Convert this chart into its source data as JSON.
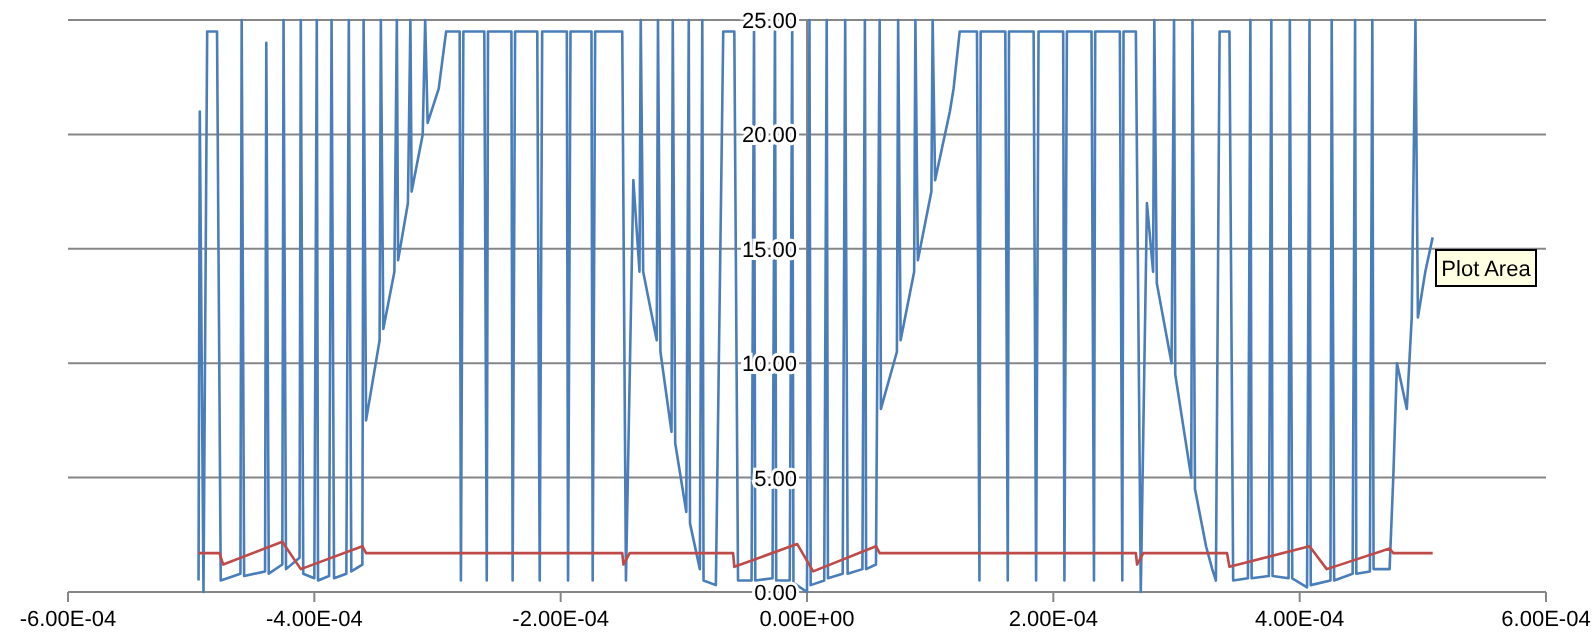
{
  "chart_data": {
    "type": "line",
    "xlim": [
      -0.0006,
      0.0006
    ],
    "xticks": [
      {
        "value": -0.0006,
        "label": "-6.00E-04"
      },
      {
        "value": -0.0004,
        "label": "-4.00E-04"
      },
      {
        "value": -0.0002,
        "label": "-2.00E-04"
      },
      {
        "value": 0,
        "label": "0.00E+00"
      },
      {
        "value": 0.0002,
        "label": "2.00E-04"
      },
      {
        "value": 0.0004,
        "label": "4.00E-04"
      },
      {
        "value": 0.0006,
        "label": "6.00E-04"
      }
    ],
    "ylim": [
      0,
      25
    ],
    "yticks": [
      {
        "value": 0,
        "label": "0.00"
      },
      {
        "value": 5,
        "label": "5.00"
      },
      {
        "value": 10,
        "label": "10.00"
      },
      {
        "value": 15,
        "label": "15.00"
      },
      {
        "value": 20,
        "label": "20.00"
      },
      {
        "value": 25,
        "label": "25.00"
      }
    ],
    "grid": "y",
    "marker": "none",
    "line_style": "solid",
    "annotations": [
      "Plot Area"
    ],
    "series": [
      {
        "color": "#4a7ebb",
        "x": [
          -0.000494,
          -0.000493,
          -0.00049,
          -0.000487,
          -0.000479,
          -0.000476,
          -0.00046,
          -0.000459,
          -0.000457,
          -0.00044,
          -0.000439,
          -0.000437,
          -0.000426,
          -0.000425,
          -0.000423,
          -0.000412,
          -0.000411,
          -0.000409,
          -0.0004,
          -0.000398,
          -0.000397,
          -0.000388,
          -0.000386,
          -0.000384,
          -0.000374,
          -0.000372,
          -0.00037,
          -0.000361,
          -0.00036,
          -0.000358,
          -0.000347,
          -0.000346,
          -0.000344,
          -0.000335,
          -0.000333,
          -0.000332,
          -0.000324,
          -0.000322,
          -0.000321,
          -0.000312,
          -0.00031,
          -0.000308,
          -0.000299,
          -0.000293,
          -0.000282,
          -0.000281,
          -0.000279,
          -0.000262,
          -0.00026,
          -0.000259,
          -0.00024,
          -0.000239,
          -0.000237,
          -0.000219,
          -0.000217,
          -0.000215,
          -0.000195,
          -0.000194,
          -0.000192,
          -0.000175,
          -0.000174,
          -0.000172,
          -0.00015,
          -0.000147,
          -0.000141,
          -0.000136,
          -0.000135,
          -0.000133,
          -0.000122,
          -0.000121,
          -0.000119,
          -0.00011,
          -0.000109,
          -0.000107,
          -9.8e-05,
          -9.6e-05,
          -9.5e-05,
          -8.7e-05,
          -8.5e-05,
          -8.4e-05,
          -7.4e-05,
          -6.8e-05,
          -5.9e-05,
          -5.6e-05,
          -4.5e-05,
          -4.3e-05,
          -4.2e-05,
          -2.8e-05,
          -2.6e-05,
          -2.5e-05,
          -1.4e-05,
          -1.2e-05,
          -1.1e-05,
          0,
          2e-06,
          3e-06,
          1.4e-05,
          1.6e-05,
          1.7e-05,
          2.9e-05,
          3.1e-05,
          3.3e-05,
          4.5e-05,
          4.7e-05,
          4.8e-05,
          5.6e-05,
          5.9e-05,
          6e-05,
          7.3e-05,
          7.4e-05,
          7.6e-05,
          8.7e-05,
          8.8e-05,
          9e-05,
          0.000101,
          0.000102,
          0.000104,
          0.000116,
          0.000119,
          0.000124,
          0.000138,
          0.00014,
          0.000141,
          0.000161,
          0.000163,
          0.000164,
          0.000184,
          0.000186,
          0.000188,
          0.000208,
          0.000209,
          0.000211,
          0.000231,
          0.000233,
          0.000234,
          0.000254,
          0.000256,
          0.000257,
          0.000267,
          0.000271,
          0.000276,
          0.000281,
          0.000282,
          0.000284,
          0.000296,
          0.000298,
          0.000299,
          0.000312,
          0.000313,
          0.000315,
          0.000324,
          0.000329,
          0.000332,
          0.000335,
          0.000343,
          0.000346,
          0.000358,
          0.00036,
          0.000361,
          0.000375,
          0.000377,
          0.000378,
          0.000391,
          0.000392,
          0.000394,
          0.000406,
          0.000408,
          0.000409,
          0.000425,
          0.000426,
          0.000428,
          0.000443,
          0.000445,
          0.000446,
          0.000457,
          0.000459,
          0.00046,
          0.000473,
          0.000476,
          0.000479,
          0.000487,
          0.000491,
          0.000494,
          0.000496,
          0.000502,
          0.000508
        ],
        "values": [
          0.5,
          21,
          0,
          24.5,
          24.5,
          0.5,
          0.8,
          25,
          0.7,
          0.9,
          24,
          0.8,
          1.2,
          25,
          1,
          1.5,
          25,
          0.8,
          0.6,
          25,
          0.5,
          0.7,
          25,
          0.6,
          0.8,
          25,
          0.9,
          1.2,
          25,
          7.5,
          11,
          25,
          11.5,
          14,
          25,
          14.5,
          17,
          25,
          17.5,
          20,
          25,
          20.5,
          22,
          24.5,
          24.5,
          0.5,
          24.5,
          24.5,
          0.5,
          24.5,
          24.5,
          0.5,
          24.5,
          24.5,
          0.5,
          24.5,
          24.5,
          0.5,
          24.5,
          24.5,
          0.5,
          24.5,
          24.5,
          0.5,
          18,
          14,
          25,
          14,
          11,
          25,
          10.5,
          7,
          25,
          6.5,
          3.5,
          25,
          3,
          1,
          25,
          0.5,
          0.3,
          24.5,
          24.5,
          0.5,
          0.5,
          25,
          0.5,
          0.6,
          25,
          0.5,
          0.5,
          25,
          0.4,
          0,
          25,
          0.3,
          0.5,
          25,
          0.6,
          0.8,
          25,
          0.8,
          1,
          25,
          1,
          1.2,
          25,
          8,
          10.5,
          25,
          11,
          14,
          25,
          14.5,
          17.5,
          25,
          18,
          21,
          22,
          24.5,
          24.5,
          0.5,
          24.5,
          24.5,
          0.5,
          24.5,
          24.5,
          0.5,
          24.5,
          24.5,
          0.5,
          24.5,
          24.5,
          0.5,
          24.5,
          24.5,
          0.5,
          24.5,
          24.5,
          0,
          17,
          14,
          25,
          13.5,
          10,
          25,
          9.5,
          5,
          25,
          4.5,
          2,
          1,
          0.5,
          24.5,
          24.5,
          0.5,
          0.6,
          25,
          0.6,
          0.7,
          25,
          0.7,
          0.6,
          25,
          0.6,
          0.2,
          25,
          0.3,
          0.5,
          25,
          0.5,
          0.8,
          25,
          0.8,
          0.9,
          25,
          1,
          1,
          5,
          10,
          8,
          12,
          25,
          12,
          14,
          15.5
        ]
      },
      {
        "color": "#be4b48",
        "x": [
          -0.000494,
          -0.000477,
          -0.000474,
          -0.000426,
          -0.000411,
          -0.000361,
          -0.000358,
          -0.00015,
          -0.000149,
          -0.000144,
          -6e-05,
          -5.9e-05,
          -8e-06,
          5e-06,
          5.6e-05,
          5.9e-05,
          0.000267,
          0.000268,
          0.000273,
          0.000341,
          0.000343,
          0.000408,
          0.000422,
          0.000473,
          0.000476,
          0.000508
        ],
        "values": [
          1.7,
          1.7,
          1.2,
          2.2,
          1.0,
          2.0,
          1.7,
          1.7,
          1.2,
          1.7,
          1.7,
          1.1,
          2.1,
          0.9,
          2.0,
          1.7,
          1.7,
          1.2,
          1.7,
          1.7,
          1.1,
          2.0,
          1.0,
          1.9,
          1.7,
          1.7
        ]
      }
    ]
  }
}
